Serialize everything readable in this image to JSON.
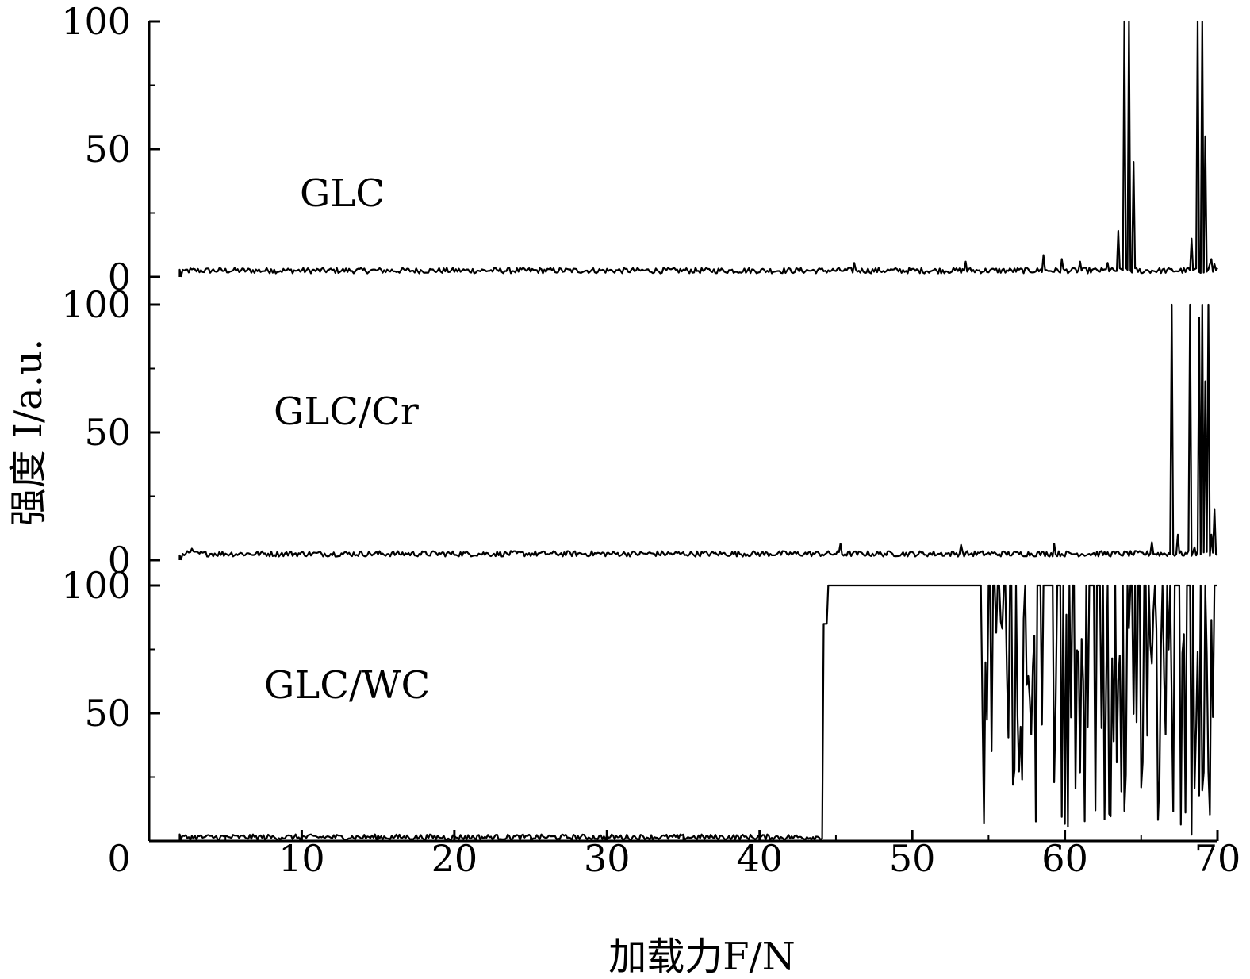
{
  "chart_data": {
    "type": "line",
    "xlabel": "加载力F/N",
    "ylabel": "强度 I/a.u.",
    "xlim": [
      0,
      70
    ],
    "x_ticks": [
      "0",
      "10",
      "20",
      "30",
      "40",
      "50",
      "60",
      "70"
    ],
    "grid": false,
    "legend": "none",
    "line_color": "#000000",
    "panels": [
      {
        "label": "GLC",
        "ylim": [
          0,
          100
        ],
        "y_ticks": [
          "0",
          "50",
          "100"
        ],
        "base": 2.5,
        "peaks": [
          [
            2.1,
            0.3
          ],
          [
            2.3,
            2.5
          ],
          [
            8.0,
            3.0
          ],
          [
            46.2,
            5.5
          ],
          [
            53.5,
            6.0
          ],
          [
            58.6,
            8.5
          ],
          [
            59.8,
            7.0
          ],
          [
            61.0,
            6.0
          ],
          [
            62.8,
            5.5
          ],
          [
            63.5,
            18.0
          ],
          [
            63.9,
            100
          ],
          [
            64.2,
            100
          ],
          [
            64.5,
            45
          ],
          [
            65.0,
            1.5
          ],
          [
            68.1,
            3.5
          ],
          [
            68.3,
            15.0
          ],
          [
            68.5,
            3.0
          ],
          [
            68.7,
            100
          ],
          [
            69.0,
            100
          ],
          [
            69.2,
            55.0
          ],
          [
            69.5,
            5.0
          ],
          [
            69.6,
            7.0
          ],
          [
            69.8,
            5.0
          ]
        ]
      },
      {
        "label": "GLC/Cr",
        "ylim": [
          0,
          100
        ],
        "y_ticks": [
          "0",
          "50",
          "100"
        ],
        "base": 2.5,
        "peaks": [
          [
            2.1,
            0.3
          ],
          [
            2.4,
            2.5
          ],
          [
            2.8,
            4.5
          ],
          [
            45.3,
            6.5
          ],
          [
            53.2,
            6.0
          ],
          [
            59.3,
            6.5
          ],
          [
            65.7,
            7.0
          ],
          [
            67.0,
            100
          ],
          [
            67.4,
            10.0
          ],
          [
            68.2,
            100
          ],
          [
            68.5,
            5.0
          ],
          [
            68.8,
            95.0
          ],
          [
            69.0,
            100
          ],
          [
            69.2,
            70.0
          ],
          [
            69.4,
            100
          ],
          [
            69.6,
            10.0
          ],
          [
            69.8,
            20.0
          ]
        ]
      },
      {
        "label": "GLC/WC",
        "ylim": [
          0,
          100
        ],
        "y_ticks": [
          "50",
          "100"
        ],
        "base": 1.5,
        "plateau": [
          44.5,
          54.5
        ],
        "noisy_region": [
          54.5,
          70.0
        ]
      }
    ]
  }
}
